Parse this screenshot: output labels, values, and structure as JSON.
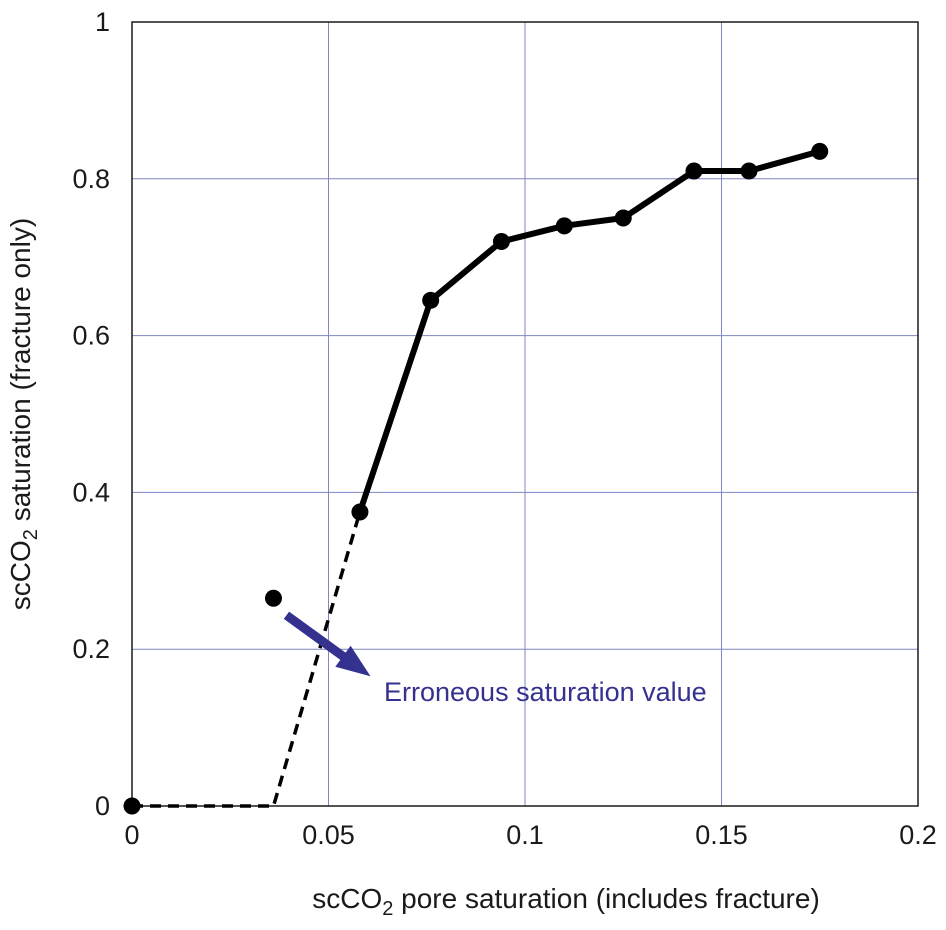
{
  "chart_data": {
    "type": "line",
    "xlabel": "scCO2 pore saturation (includes fracture)",
    "ylabel": "scCO2 saturation (fracture only)",
    "xlabel_parts": {
      "pre": "scCO",
      "sub": "2",
      "post": " pore saturation (includes fracture)"
    },
    "ylabel_parts": {
      "pre": "scCO",
      "sub": "2",
      "post": " saturation (fracture only)"
    },
    "xlim": [
      0,
      0.2
    ],
    "ylim": [
      0,
      1
    ],
    "xticks": [
      0,
      0.05,
      0.1,
      0.15,
      0.2
    ],
    "xtick_labels": [
      "0",
      "0.05",
      "0.1",
      "0.15",
      "0.2"
    ],
    "yticks": [
      0,
      0.2,
      0.4,
      0.6,
      0.8,
      1
    ],
    "ytick_labels": [
      "0",
      "0.2",
      "0.4",
      "0.6",
      "0.8",
      "1"
    ],
    "grid": true,
    "series": [
      {
        "style": "solid",
        "x": [
          0.058,
          0.076,
          0.094,
          0.11,
          0.125,
          0.143,
          0.157,
          0.175
        ],
        "y": [
          0.375,
          0.645,
          0.72,
          0.74,
          0.75,
          0.81,
          0.81,
          0.835
        ]
      },
      {
        "style": "dashed",
        "x": [
          0,
          0.036,
          0.058
        ],
        "y": [
          0,
          0,
          0.375
        ]
      }
    ],
    "markers": {
      "x": [
        0,
        0.036,
        0.058,
        0.076,
        0.094,
        0.11,
        0.125,
        0.143,
        0.157,
        0.175
      ],
      "y": [
        0,
        0.265,
        0.375,
        0.645,
        0.72,
        0.74,
        0.75,
        0.81,
        0.81,
        0.835
      ]
    },
    "annotation": {
      "text": "Erroneous saturation value",
      "color": "#35318f",
      "target": {
        "x": 0.036,
        "y": 0.265
      }
    },
    "colors": {
      "line": "#000000",
      "grid": "#7f86c4",
      "axes": "#1a1a1a",
      "annotation": "#35318f"
    }
  }
}
